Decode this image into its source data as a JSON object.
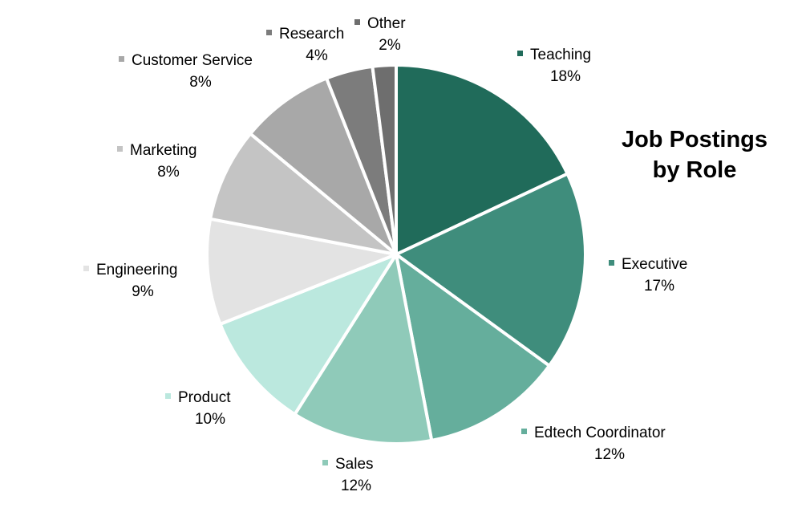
{
  "chart_data": {
    "type": "pie",
    "title_lines": [
      "Job Postings",
      "by Role"
    ],
    "slices": [
      {
        "label": "Teaching",
        "value": 18,
        "value_label": "18%",
        "color": "#206b5a"
      },
      {
        "label": "Executive",
        "value": 17,
        "value_label": "17%",
        "color": "#3f8d7c"
      },
      {
        "label": "Edtech Coordinator",
        "value": 12,
        "value_label": "12%",
        "color": "#65ae9c"
      },
      {
        "label": "Sales",
        "value": 12,
        "value_label": "12%",
        "color": "#8fcab9"
      },
      {
        "label": "Product",
        "value": 10,
        "value_label": "10%",
        "color": "#bbe8de"
      },
      {
        "label": "Engineering",
        "value": 9,
        "value_label": "9%",
        "color": "#e3e3e3"
      },
      {
        "label": "Marketing",
        "value": 8,
        "value_label": "8%",
        "color": "#c4c4c4"
      },
      {
        "label": "Customer Service",
        "value": 8,
        "value_label": "8%",
        "color": "#a8a8a8"
      },
      {
        "label": "Research",
        "value": 4,
        "value_label": "4%",
        "color": "#7c7c7c"
      },
      {
        "label": "Other",
        "value": 2,
        "value_label": "2%",
        "color": "#6e6e6e"
      }
    ],
    "start": "12 o'clock",
    "direction": "clockwise",
    "legend": "none"
  }
}
